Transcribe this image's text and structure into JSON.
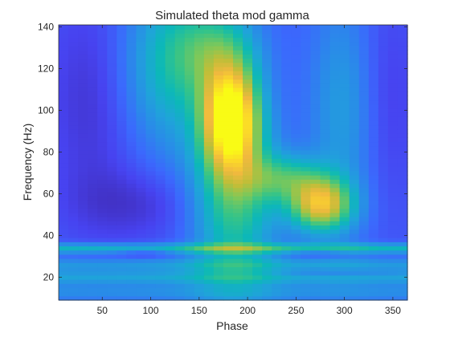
{
  "chart_data": {
    "type": "heatmap",
    "title": "Simulated theta mod gamma",
    "xlabel": "Phase",
    "ylabel": "Frequency (Hz)",
    "xlim": [
      5,
      365
    ],
    "ylim": [
      9,
      141
    ],
    "x_bin_width": 10,
    "y_bin_width": 2,
    "xticks": [
      50,
      100,
      150,
      200,
      250,
      300,
      350
    ],
    "yticks": [
      20,
      40,
      60,
      80,
      100,
      120,
      140
    ],
    "colormap": "parula",
    "colormap_stops": [
      "#3e26a8",
      "#4743f0",
      "#3b69fd",
      "#2a8ae9",
      "#1fa4d9",
      "#0cb8b8",
      "#35c488",
      "#7cc85a",
      "#c0be38",
      "#f0b93e",
      "#fbd929",
      "#f9fb15"
    ],
    "grid": false,
    "legend": "none",
    "features": {
      "description_of_regions": [
        {
          "name": "gamma blob high",
          "center_phase": 183,
          "center_freq_hz": 95,
          "intensity": "max (yellow)"
        },
        {
          "name": "gamma blob low",
          "center_phase": 275,
          "center_freq_hz": 55,
          "intensity": "high (yellow-orange)"
        },
        {
          "name": "band",
          "freq_hz": 33,
          "intensity": "mid (cyan-green)"
        },
        {
          "name": "band",
          "freq_hz": 20,
          "intensity": "mid (cyan)"
        }
      ]
    }
  }
}
